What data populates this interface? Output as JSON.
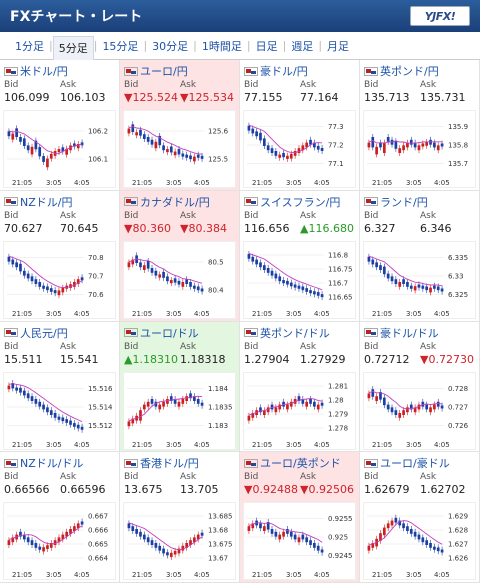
{
  "header": {
    "title": "FXチャート・レート",
    "logo_text": "YJFX!"
  },
  "tabs": [
    {
      "label": "1分足"
    },
    {
      "label": "5分足",
      "active": true
    },
    {
      "label": "15分足"
    },
    {
      "label": "30分足"
    },
    {
      "label": "1時間足"
    },
    {
      "label": "日足"
    },
    {
      "label": "週足"
    },
    {
      "label": "月足"
    }
  ],
  "labels": {
    "bid": "Bid",
    "ask": "Ask"
  },
  "colors": {
    "up_bg": "#e3f6df",
    "down_bg": "#fde3e3",
    "candle_up": "#cc1f1f",
    "candle_down": "#1c3fa6",
    "ma_line": "#c43fbf",
    "up_text": "#2a9a2a",
    "down_text": "#d0232b"
  },
  "pairs": [
    {
      "name": "米ドル/円",
      "bid": "106.099",
      "ask": "106.103",
      "trend": "",
      "ticks": [
        "106.2",
        "106.1"
      ],
      "times": [
        "21:05",
        "3:05",
        "4:05"
      ],
      "shape": [
        0.3,
        0.35,
        0.28,
        0.4,
        0.45,
        0.55,
        0.6,
        0.5,
        0.62,
        0.75,
        0.82,
        0.7,
        0.65,
        0.6,
        0.58,
        0.62,
        0.55,
        0.5,
        0.52,
        0.48
      ]
    },
    {
      "name": "ユーロ/円",
      "bid": "▼125.524",
      "ask": "▼125.534",
      "trend": "down",
      "ticks": [
        "125.6",
        "125.5"
      ],
      "times": [
        "21:05",
        "3:05",
        "4:05"
      ],
      "shape": [
        0.25,
        0.2,
        0.3,
        0.28,
        0.35,
        0.4,
        0.45,
        0.5,
        0.42,
        0.55,
        0.6,
        0.58,
        0.65,
        0.62,
        0.68,
        0.7,
        0.72,
        0.75,
        0.7,
        0.72
      ]
    },
    {
      "name": "豪ドル/円",
      "bid": "77.155",
      "ask": "77.164",
      "trend": "",
      "ticks": [
        "77.3",
        "77.2",
        "77.1"
      ],
      "times": [
        "21:05",
        "3:05",
        "4:05"
      ],
      "shape": [
        0.2,
        0.25,
        0.3,
        0.35,
        0.45,
        0.55,
        0.6,
        0.65,
        0.7,
        0.68,
        0.72,
        0.7,
        0.65,
        0.6,
        0.55,
        0.5,
        0.45,
        0.5,
        0.55,
        0.58
      ]
    },
    {
      "name": "英ポンド/円",
      "bid": "135.713",
      "ask": "135.731",
      "trend": "",
      "ticks": [
        "135.9",
        "135.8",
        "135.7"
      ],
      "times": [
        "21:05",
        "3:05",
        "4:05"
      ],
      "shape": [
        0.5,
        0.45,
        0.6,
        0.5,
        0.55,
        0.4,
        0.45,
        0.5,
        0.6,
        0.55,
        0.5,
        0.45,
        0.5,
        0.55,
        0.5,
        0.48,
        0.45,
        0.5,
        0.55,
        0.5
      ]
    },
    {
      "name": "NZドル/円",
      "bid": "70.627",
      "ask": "70.645",
      "trend": "",
      "ticks": [
        "70.8",
        "70.7",
        "70.6"
      ],
      "times": [
        "21:05",
        "3:05",
        "4:05"
      ],
      "shape": [
        0.2,
        0.25,
        0.3,
        0.35,
        0.45,
        0.5,
        0.55,
        0.6,
        0.65,
        0.7,
        0.72,
        0.75,
        0.78,
        0.8,
        0.75,
        0.7,
        0.68,
        0.65,
        0.6,
        0.55
      ]
    },
    {
      "name": "カナダドル/円",
      "bid": "▼80.360",
      "ask": "▼80.384",
      "trend": "down",
      "ticks": [
        "80.5",
        "80.4"
      ],
      "times": [
        "21:05",
        "3:05",
        "4:05"
      ],
      "shape": [
        0.3,
        0.25,
        0.2,
        0.3,
        0.35,
        0.3,
        0.4,
        0.45,
        0.5,
        0.48,
        0.55,
        0.6,
        0.58,
        0.62,
        0.65,
        0.6,
        0.65,
        0.7,
        0.72,
        0.75
      ]
    },
    {
      "name": "スイスフラン/円",
      "bid": "116.656",
      "ask": "▲116.680",
      "trend": "",
      "ticks": [
        "116.8",
        "116.75",
        "116.7",
        "116.65"
      ],
      "times": [
        "21:05",
        "3:05",
        "4:05"
      ],
      "shape": [
        0.15,
        0.2,
        0.25,
        0.3,
        0.35,
        0.4,
        0.45,
        0.5,
        0.55,
        0.6,
        0.62,
        0.65,
        0.68,
        0.7,
        0.72,
        0.75,
        0.78,
        0.8,
        0.82,
        0.85
      ]
    },
    {
      "name": "ランド/円",
      "bid": "6.327",
      "ask": "6.346",
      "trend": "",
      "ticks": [
        "6.335",
        "6.33",
        "6.325"
      ],
      "times": [
        "21:05",
        "3:05",
        "4:05"
      ],
      "shape": [
        0.2,
        0.25,
        0.3,
        0.35,
        0.4,
        0.5,
        0.55,
        0.6,
        0.65,
        0.6,
        0.65,
        0.7,
        0.72,
        0.68,
        0.7,
        0.72,
        0.75,
        0.7,
        0.72,
        0.75
      ]
    },
    {
      "name": "人民元/円",
      "bid": "15.511",
      "ask": "15.541",
      "trend": "",
      "ticks": [
        "15.516",
        "15.514",
        "15.512"
      ],
      "times": [
        "21:05",
        "3:05",
        "4:05"
      ],
      "shape": [
        0.15,
        0.12,
        0.18,
        0.2,
        0.25,
        0.3,
        0.35,
        0.4,
        0.45,
        0.5,
        0.55,
        0.6,
        0.65,
        0.7,
        0.72,
        0.75,
        0.78,
        0.82,
        0.85,
        0.88
      ]
    },
    {
      "name": "ユーロ/ドル",
      "bid": "▲1.18310",
      "ask": "1.18318",
      "trend": "up",
      "ticks": [
        "1.184",
        "1.1835",
        "1.183"
      ],
      "times": [
        "21:05",
        "3:05",
        "4:05"
      ],
      "shape": [
        0.8,
        0.75,
        0.7,
        0.65,
        0.5,
        0.45,
        0.4,
        0.45,
        0.5,
        0.45,
        0.4,
        0.35,
        0.4,
        0.45,
        0.4,
        0.35,
        0.3,
        0.35,
        0.4,
        0.45
      ]
    },
    {
      "name": "英ポンド/ドル",
      "bid": "1.27904",
      "ask": "1.27929",
      "trend": "",
      "ticks": [
        "1.281",
        "1.28",
        "1.279",
        "1.278"
      ],
      "times": [
        "21:05",
        "3:05",
        "4:05"
      ],
      "shape": [
        0.7,
        0.65,
        0.6,
        0.55,
        0.6,
        0.55,
        0.5,
        0.55,
        0.5,
        0.45,
        0.5,
        0.45,
        0.4,
        0.35,
        0.4,
        0.45,
        0.4,
        0.45,
        0.5,
        0.45
      ]
    },
    {
      "name": "豪ドル/ドル",
      "bid": "0.72712",
      "ask": "▼0.72730",
      "trend": "",
      "ticks": [
        "0.728",
        "0.727",
        "0.726"
      ],
      "times": [
        "21:05",
        "3:05",
        "4:05"
      ],
      "shape": [
        0.3,
        0.25,
        0.35,
        0.3,
        0.4,
        0.5,
        0.55,
        0.6,
        0.65,
        0.6,
        0.55,
        0.5,
        0.55,
        0.5,
        0.45,
        0.5,
        0.55,
        0.5,
        0.45,
        0.5
      ]
    },
    {
      "name": "NZドル/ドル",
      "bid": "0.66566",
      "ask": "0.66596",
      "trend": "",
      "ticks": [
        "0.667",
        "0.666",
        "0.665",
        "0.664"
      ],
      "times": [
        "21:05",
        "3:05",
        "4:05"
      ],
      "shape": [
        0.6,
        0.55,
        0.5,
        0.45,
        0.5,
        0.55,
        0.6,
        0.65,
        0.7,
        0.72,
        0.68,
        0.65,
        0.6,
        0.55,
        0.5,
        0.45,
        0.4,
        0.35,
        0.3,
        0.25
      ]
    },
    {
      "name": "香港ドル/円",
      "bid": "13.675",
      "ask": "13.705",
      "trend": "",
      "ticks": [
        "13.685",
        "13.68",
        "13.675",
        "13.67"
      ],
      "times": [
        "21:05",
        "3:05",
        "4:05"
      ],
      "shape": [
        0.3,
        0.35,
        0.4,
        0.45,
        0.5,
        0.55,
        0.6,
        0.65,
        0.7,
        0.75,
        0.8,
        0.82,
        0.78,
        0.75,
        0.7,
        0.65,
        0.6,
        0.55,
        0.5,
        0.45
      ]
    },
    {
      "name": "ユーロ/英ポンド",
      "bid": "▼0.92488",
      "ask": "▼0.92506",
      "trend": "down",
      "ticks": [
        "0.9255",
        "0.925",
        "0.9245"
      ],
      "times": [
        "21:05",
        "3:05",
        "4:05"
      ],
      "shape": [
        0.35,
        0.3,
        0.25,
        0.3,
        0.35,
        0.3,
        0.4,
        0.45,
        0.5,
        0.45,
        0.4,
        0.45,
        0.5,
        0.55,
        0.5,
        0.55,
        0.6,
        0.65,
        0.7,
        0.75
      ]
    },
    {
      "name": "ユーロ/豪ドル",
      "bid": "1.62679",
      "ask": "1.62702",
      "trend": "",
      "ticks": [
        "1.629",
        "1.628",
        "1.627",
        "1.626"
      ],
      "times": [
        "21:05",
        "3:05",
        "4:05"
      ],
      "shape": [
        0.7,
        0.65,
        0.6,
        0.5,
        0.4,
        0.3,
        0.25,
        0.2,
        0.25,
        0.3,
        0.35,
        0.4,
        0.45,
        0.5,
        0.55,
        0.6,
        0.65,
        0.7,
        0.72,
        0.75
      ]
    }
  ]
}
